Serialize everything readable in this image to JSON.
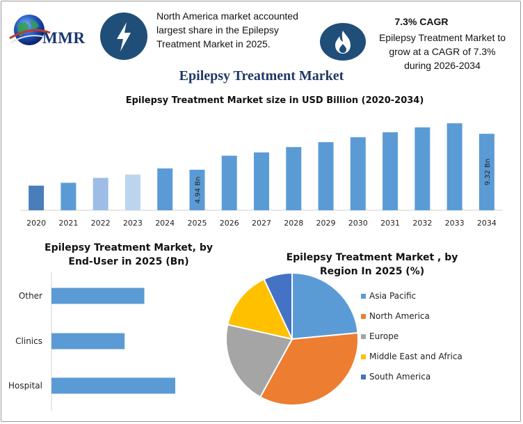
{
  "header": {
    "logo_text": "MMR",
    "share_note": "North America market accounted largest share in the Epilepsy Treatment Market in 2025.",
    "cagr_label": "7.3% CAGR",
    "cagr_note": "Epilepsy Treatment Market to grow at a CAGR of 7.3% during 2026-2034",
    "share_icon": "lightning-bolt-icon",
    "cagr_icon": "flame-icon"
  },
  "title": "Epilepsy Treatment Market",
  "chart_data": [
    {
      "type": "bar",
      "title": "Epilepsy Treatment Market size in USD Billion (2020-2034)",
      "categories": [
        "2020",
        "2021",
        "2022",
        "2023",
        "2024",
        "2025",
        "2026",
        "2027",
        "2028",
        "2029",
        "2030",
        "2031",
        "2032",
        "2033",
        "2034"
      ],
      "values": [
        3.0,
        3.35,
        3.95,
        4.35,
        5.1,
        4.94,
        6.65,
        7.05,
        7.7,
        8.3,
        8.9,
        9.5,
        10.1,
        10.6,
        9.32
      ],
      "ylim": [
        0,
        11.2
      ],
      "data_labels": [
        {
          "category": "2025",
          "text": "4.94 Bn"
        },
        {
          "category": "2034",
          "text": "9.32 Bn"
        }
      ],
      "bar_colors": [
        "#4a7ebb",
        "#5b9bd5",
        "#9dbde6",
        "#bdd4ee",
        "#5b9bd5",
        "#5b9bd5",
        "#5b9bd5",
        "#5b9bd5",
        "#5b9bd5",
        "#5b9bd5",
        "#5b9bd5",
        "#5b9bd5",
        "#5b9bd5",
        "#5b9bd5",
        "#5b9bd5"
      ],
      "grid": false
    },
    {
      "type": "bar",
      "orientation": "horizontal",
      "title": "Epilepsy Treatment Market, by End-User in 2025 (Bn)",
      "categories": [
        "Other",
        "Clinics",
        "Hospital"
      ],
      "values": [
        1.32,
        1.04,
        1.76
      ],
      "xlim": [
        0,
        1.76
      ],
      "color": "#5b9bd5"
    },
    {
      "type": "pie",
      "title": "Epilepsy Treatment Market , by Region In 2025 (%)",
      "labels": [
        "Asia Pacific",
        "North America",
        "Europe",
        "Middle East and Africa",
        "South America"
      ],
      "values": [
        23.5,
        34.5,
        20.5,
        14.5,
        7.0
      ],
      "colors": [
        "#5b9bd5",
        "#ed7d31",
        "#a5a5a5",
        "#ffc000",
        "#4472c4"
      ],
      "legend": "right"
    }
  ]
}
